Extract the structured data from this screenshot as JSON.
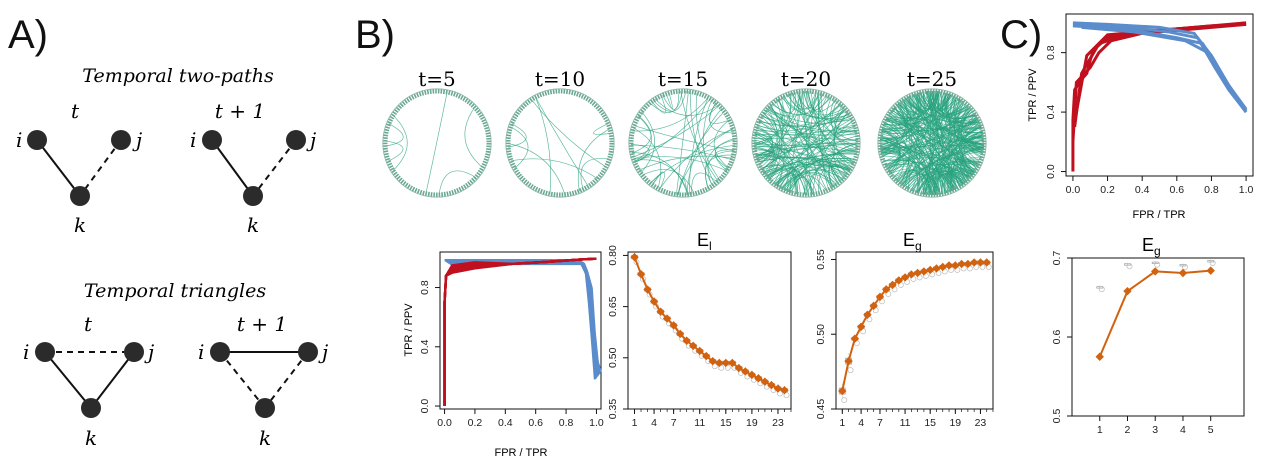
{
  "panels": {
    "A": {
      "label": "A)",
      "title_two_paths": "Temporal two-paths",
      "title_triangles": "Temporal triangles",
      "time_left": "t",
      "time_right": "t + 1",
      "node_i": "i",
      "node_j": "j",
      "node_k": "k"
    },
    "B": {
      "label": "B)",
      "circle_titles": [
        "t=5",
        "t=10",
        "t=15",
        "t=20",
        "t=25"
      ],
      "circle_densities": [
        6,
        10,
        45,
        160,
        320
      ],
      "edge_color": "#2aa37f",
      "roc": {
        "ylabel": "TPR / PPV",
        "xlabel": "FPR / TPR",
        "yticks": [
          "0.0",
          "0.4",
          "0.8"
        ],
        "xticks": [
          "0.0",
          "0.2",
          "0.4",
          "0.6",
          "0.8",
          "1.0"
        ]
      },
      "el": {
        "title": "E",
        "title_sub": "l",
        "yticks": [
          "0.35",
          "0.50",
          "0.65",
          "0.80"
        ],
        "xticks": [
          "1",
          "4",
          "7",
          "11",
          "15",
          "19",
          "23"
        ]
      },
      "eg": {
        "title": "E",
        "title_sub": "g",
        "yticks": [
          "0.45",
          "0.50",
          "0.55"
        ],
        "xticks": [
          "1",
          "4",
          "7",
          "11",
          "15",
          "19",
          "23"
        ]
      }
    },
    "C": {
      "label": "C)",
      "roc": {
        "ylabel": "TPR / PPV",
        "xlabel": "FPR / TPR",
        "yticks": [
          "0.0",
          "0.4",
          "0.8"
        ],
        "xticks": [
          "0.0",
          "0.2",
          "0.4",
          "0.6",
          "0.8",
          "1.0"
        ]
      },
      "eg": {
        "title": "E",
        "title_sub": "g",
        "yticks": [
          "0.5",
          "0.6",
          "0.7"
        ],
        "xticks": [
          "1",
          "2",
          "3",
          "4",
          "5"
        ]
      }
    }
  },
  "colors": {
    "red": "#c0101f",
    "blue": "#5b8ccc",
    "orange": "#d2620f",
    "node": "#2b2b2b"
  },
  "chart_data": [
    {
      "type": "line",
      "title": "E",
      "title_subscript": "l",
      "x": [
        1,
        2,
        3,
        4,
        5,
        6,
        7,
        8,
        9,
        10,
        11,
        12,
        13,
        14,
        15,
        16,
        17,
        18,
        19,
        20,
        21,
        22,
        23,
        24
      ],
      "series": [
        {
          "values": [
            0.795,
            0.745,
            0.7,
            0.665,
            0.635,
            0.615,
            0.595,
            0.57,
            0.55,
            0.535,
            0.52,
            0.505,
            0.49,
            0.485,
            0.485,
            0.485,
            0.47,
            0.46,
            0.45,
            0.44,
            0.43,
            0.42,
            0.41,
            0.405
          ]
        }
      ],
      "ylim": [
        0.35,
        0.81
      ]
    },
    {
      "type": "line",
      "title": "E",
      "title_subscript": "g",
      "x": [
        1,
        2,
        3,
        4,
        5,
        6,
        7,
        8,
        9,
        10,
        11,
        12,
        13,
        14,
        15,
        16,
        17,
        18,
        19,
        20,
        21,
        22,
        23,
        24
      ],
      "series": [
        {
          "values": [
            0.462,
            0.482,
            0.497,
            0.505,
            0.513,
            0.519,
            0.525,
            0.53,
            0.533,
            0.536,
            0.538,
            0.54,
            0.541,
            0.542,
            0.543,
            0.544,
            0.545,
            0.546,
            0.546,
            0.547,
            0.547,
            0.548,
            0.548,
            0.548
          ]
        }
      ],
      "ylim": [
        0.45,
        0.555
      ]
    },
    {
      "type": "line",
      "title": "E",
      "title_subscript": "g",
      "x": [
        1,
        2,
        3,
        4,
        5
      ],
      "series": [
        {
          "values": [
            0.575,
            0.658,
            0.683,
            0.681,
            0.684
          ]
        }
      ],
      "boxes": [
        0.663,
        0.692,
        0.694,
        0.691,
        0.696
      ],
      "ylim": [
        0.5,
        0.7
      ]
    }
  ]
}
